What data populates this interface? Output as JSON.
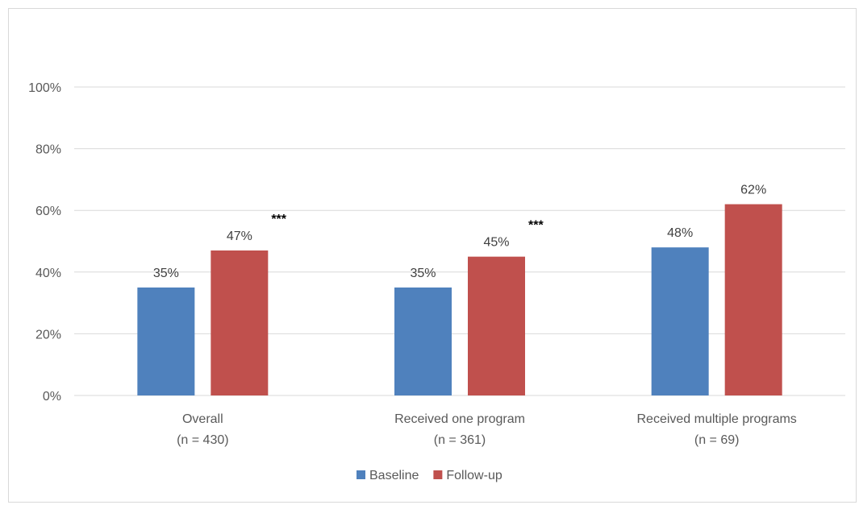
{
  "chart_data": {
    "type": "bar",
    "title": "",
    "xlabel": "",
    "ylabel": "",
    "ylim": [
      0,
      100
    ],
    "yticks": [
      0,
      20,
      40,
      60,
      80,
      100
    ],
    "ytick_format": "{v}%",
    "grid": true,
    "legend_position": "bottom",
    "categories": [
      {
        "label": "Overall",
        "sublabel": "(n = 430)"
      },
      {
        "label": "Received one program",
        "sublabel": "(n = 361)"
      },
      {
        "label": "Received multiple programs",
        "sublabel": "(n = 69)"
      }
    ],
    "series": [
      {
        "name": "Baseline",
        "color": "#4F81BD",
        "values": [
          35,
          35,
          48
        ],
        "labels": [
          "35%",
          "35%",
          "48%"
        ]
      },
      {
        "name": "Follow-up",
        "color": "#C0504D",
        "values": [
          47,
          45,
          62
        ],
        "labels": [
          "47%",
          "45%",
          "62%"
        ]
      }
    ],
    "annotations": [
      {
        "category_index": 0,
        "series_index": 1,
        "text": "***"
      },
      {
        "category_index": 1,
        "series_index": 1,
        "text": "***"
      }
    ]
  }
}
